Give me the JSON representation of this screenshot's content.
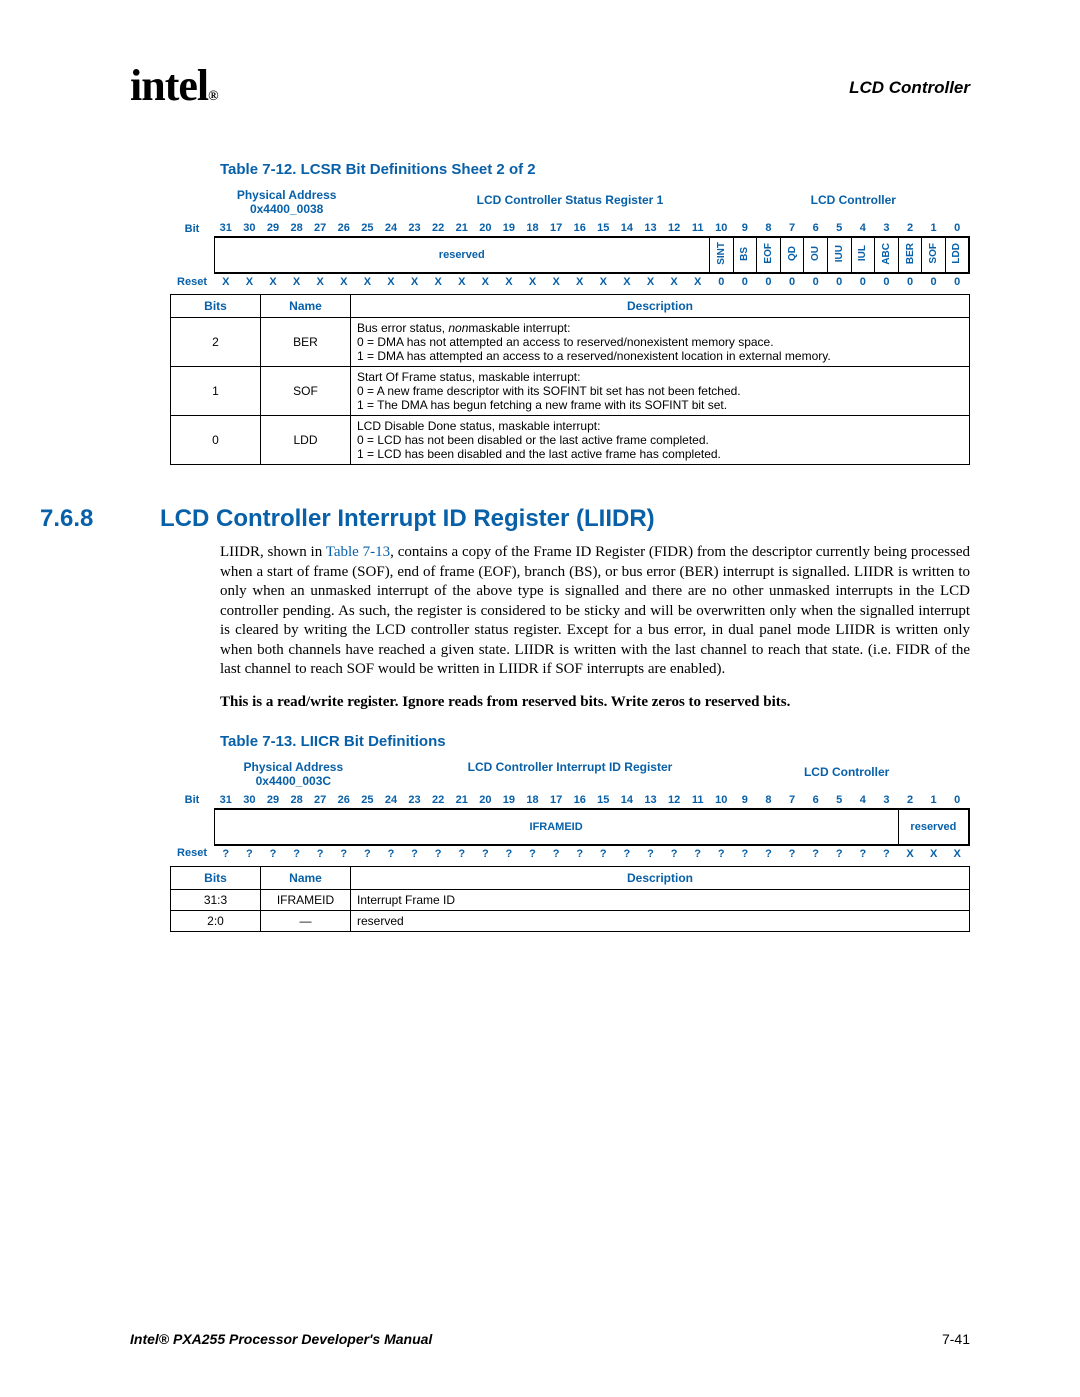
{
  "header": {
    "logo_text": "intel",
    "logo_sub": "®",
    "right": "LCD Controller"
  },
  "figure1": {
    "caption": "Table 7-12. LCSR Bit Definitions Sheet 2 of 2",
    "phys_addr_label": "Physical Address",
    "phys_addr": "0x4400_0038",
    "reg_name": "LCD Controller Status Register 1",
    "module": "LCD Controller",
    "bit_label": "Bit",
    "reset_label": "Reset",
    "bits": [
      "31",
      "30",
      "29",
      "28",
      "27",
      "26",
      "25",
      "24",
      "23",
      "22",
      "21",
      "20",
      "19",
      "18",
      "17",
      "16",
      "15",
      "14",
      "13",
      "12",
      "11",
      "10",
      "9",
      "8",
      "7",
      "6",
      "5",
      "4",
      "3",
      "2",
      "1",
      "0"
    ],
    "fields": [
      {
        "span": 21,
        "name": "reserved",
        "vert": false
      },
      {
        "span": 1,
        "name": "SINT",
        "vert": true
      },
      {
        "span": 1,
        "name": "BS",
        "vert": true
      },
      {
        "span": 1,
        "name": "EOF",
        "vert": true
      },
      {
        "span": 1,
        "name": "QD",
        "vert": true
      },
      {
        "span": 1,
        "name": "OU",
        "vert": true
      },
      {
        "span": 1,
        "name": "IUU",
        "vert": true
      },
      {
        "span": 1,
        "name": "IUL",
        "vert": true
      },
      {
        "span": 1,
        "name": "ABC",
        "vert": true
      },
      {
        "span": 1,
        "name": "BER",
        "vert": true
      },
      {
        "span": 1,
        "name": "SOF",
        "vert": true
      },
      {
        "span": 1,
        "name": "LDD",
        "vert": true
      }
    ],
    "reset": [
      "X",
      "X",
      "X",
      "X",
      "X",
      "X",
      "X",
      "X",
      "X",
      "X",
      "X",
      "X",
      "X",
      "X",
      "X",
      "X",
      "X",
      "X",
      "X",
      "X",
      "X",
      "0",
      "0",
      "0",
      "0",
      "0",
      "0",
      "0",
      "0",
      "0",
      "0",
      "0"
    ],
    "desc_headers": [
      "Bits",
      "Name",
      "Description"
    ],
    "desc_rows": [
      {
        "bits": "2",
        "name": "BER",
        "desc": "Bus error status, <i>non</i>maskable interrupt:<br>0 =  DMA has not attempted an access to reserved/nonexistent memory space.<br>1 =  DMA has attempted an access to a reserved/nonexistent location in external memory."
      },
      {
        "bits": "1",
        "name": "SOF",
        "desc": "Start Of Frame status, maskable interrupt:<br>0 =  A new frame descriptor with its SOFINT bit set has not been fetched.<br>1 =  The DMA has begun fetching a new frame with its SOFINT bit set."
      },
      {
        "bits": "0",
        "name": "LDD",
        "desc": "LCD Disable Done status, maskable interrupt:<br>0 =  LCD has not been disabled or the last active frame completed.<br>1 =  LCD has been disabled and the last active frame has completed."
      }
    ]
  },
  "section": {
    "num": "7.6.8",
    "title": "LCD Controller Interrupt ID Register (LIIDR)",
    "body_pre": "LIIDR, shown in ",
    "body_link": "Table 7-13",
    "body_post": ", contains a copy of the Frame ID Register (FIDR) from the descriptor currently being processed when a start of frame (SOF), end of frame (EOF), branch (BS), or bus error (BER) interrupt is signalled. LIIDR is written to only when an unmasked interrupt of the above type is signalled and there are no other unmasked interrupts in the LCD controller pending. As such, the register is considered to be sticky and will be overwritten only when the signalled interrupt is cleared by writing the LCD controller status register. Except for a bus error, in dual panel mode LIIDR is written only when both channels have reached a given state. LIIDR is written with the last channel to reach that state. (i.e. FIDR of the last channel to reach SOF would be written in LIIDR if SOF interrupts are enabled).",
    "note": "This is a read/write register. Ignore reads from reserved bits. Write zeros to reserved bits."
  },
  "figure2": {
    "caption": "Table 7-13. LIICR Bit Definitions",
    "phys_addr_label": "Physical Address",
    "phys_addr": "0x4400_003C",
    "reg_name": "LCD Controller Interrupt ID Register",
    "module": "LCD Controller",
    "bit_label": "Bit",
    "reset_label": "Reset",
    "bits": [
      "31",
      "30",
      "29",
      "28",
      "27",
      "26",
      "25",
      "24",
      "23",
      "22",
      "21",
      "20",
      "19",
      "18",
      "17",
      "16",
      "15",
      "14",
      "13",
      "12",
      "11",
      "10",
      "9",
      "8",
      "7",
      "6",
      "5",
      "4",
      "3",
      "2",
      "1",
      "0"
    ],
    "fields": [
      {
        "span": 29,
        "name": "IFRAMEID",
        "vert": false
      },
      {
        "span": 3,
        "name": "reserved",
        "vert": false
      }
    ],
    "reset": [
      "?",
      "?",
      "?",
      "?",
      "?",
      "?",
      "?",
      "?",
      "?",
      "?",
      "?",
      "?",
      "?",
      "?",
      "?",
      "?",
      "?",
      "?",
      "?",
      "?",
      "?",
      "?",
      "?",
      "?",
      "?",
      "?",
      "?",
      "?",
      "?",
      "X",
      "X",
      "X"
    ],
    "desc_headers": [
      "Bits",
      "Name",
      "Description"
    ],
    "desc_rows": [
      {
        "bits": "31:3",
        "name": "IFRAMEID",
        "desc": "Interrupt Frame ID"
      },
      {
        "bits": "2:0",
        "name": "—",
        "desc": "reserved"
      }
    ]
  },
  "footer": {
    "left": "Intel® PXA255 Processor Developer's Manual",
    "right": "7-41"
  }
}
